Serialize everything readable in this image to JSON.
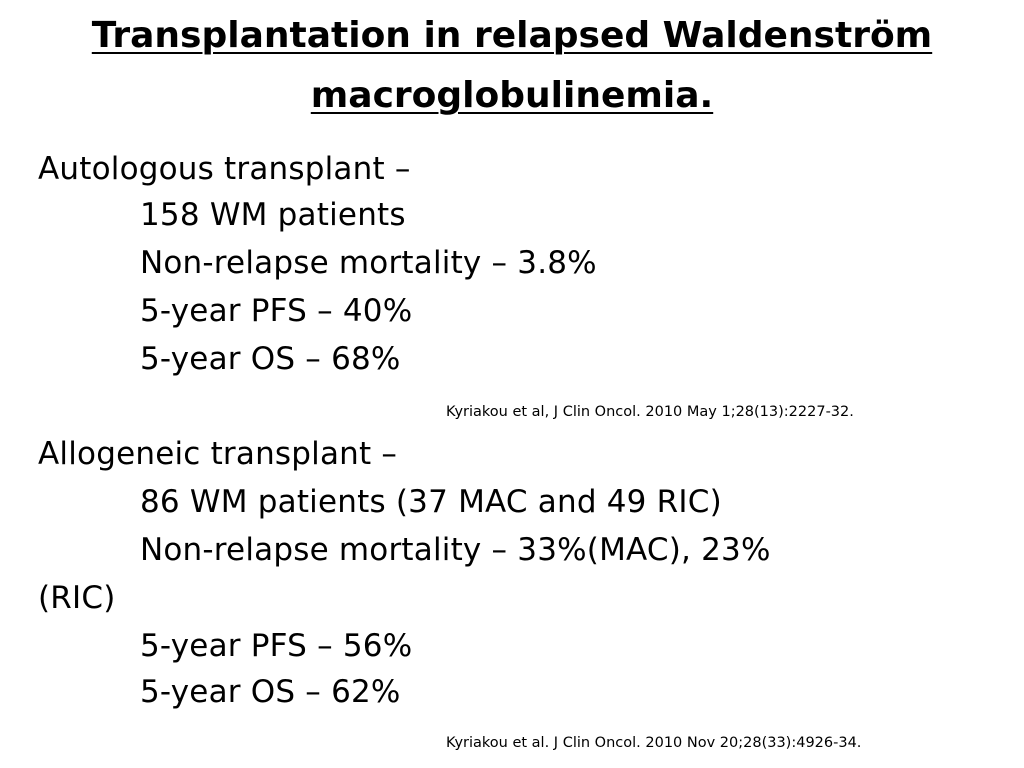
{
  "title": {
    "line1": "Transplantation in relapsed Waldenström",
    "line2": "macroglobulinemia."
  },
  "auto": {
    "heading": "Autologous transplant –",
    "patients": "158 WM patients",
    "nrm": "Non-relapse mortality – 3.8%",
    "pfs": "5-year PFS – 40%",
    "os": "5-year OS – 68%",
    "citation": "Kyriakou et al, J Clin Oncol. 2010 May 1;28(13):2227-32."
  },
  "allo": {
    "heading": "Allogeneic transplant –",
    "patients": "86 WM patients (37 MAC and 49 RIC)",
    "nrm": "Non-relapse mortality – 33%(MAC), 23%",
    "nrm_wrap": "(RIC)",
    "pfs": "5-year PFS – 56%",
    "os": "5-year OS – 62%",
    "citation": "Kyriakou  et al. J Clin Oncol. 2010 Nov 20;28(33):4926-34."
  }
}
